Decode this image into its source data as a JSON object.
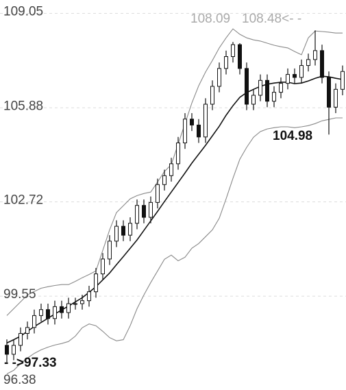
{
  "chart_data": {
    "type": "candlestick",
    "ylim": [
      96.4,
      109.5
    ],
    "yticks": [
      109.05,
      105.88,
      102.72,
      99.55,
      96.38
    ],
    "grid": true,
    "candle_color": "#111111",
    "open": [
      97.9,
      97.6,
      97.9,
      98.3,
      98.5,
      98.9,
      99.1,
      98.8,
      99.2,
      99.0,
      99.3,
      99.3,
      99.4,
      99.7,
      100.3,
      100.8,
      101.4,
      101.9,
      101.6,
      102.0,
      102.6,
      102.2,
      102.7,
      103.3,
      103.6,
      104.0,
      104.7,
      105.5,
      105.3,
      104.9,
      106.0,
      106.6,
      107.2,
      107.6,
      108.0,
      107.2,
      106.0,
      106.3,
      106.8,
      106.1,
      106.4,
      106.7,
      107.0,
      106.9,
      107.3,
      107.5,
      107.8,
      106.9,
      105.9,
      106.5
    ],
    "high": [
      98.1,
      98.1,
      98.5,
      98.7,
      99.1,
      99.3,
      99.3,
      99.4,
      99.4,
      99.5,
      99.5,
      99.6,
      99.9,
      100.5,
      101.0,
      101.6,
      102.1,
      102.1,
      102.2,
      102.8,
      102.8,
      102.9,
      103.5,
      103.8,
      104.2,
      104.9,
      105.7,
      105.7,
      105.5,
      106.2,
      106.8,
      107.4,
      107.8,
      108.09,
      108.05,
      107.4,
      106.5,
      107.0,
      107.0,
      106.6,
      106.9,
      107.2,
      107.2,
      107.5,
      107.7,
      108.48,
      108.0,
      107.1,
      106.7,
      107.3
    ],
    "low": [
      97.33,
      97.4,
      97.7,
      98.1,
      98.3,
      98.7,
      98.6,
      98.6,
      98.8,
      98.8,
      99.1,
      99.1,
      99.2,
      99.5,
      100.1,
      100.6,
      101.2,
      101.4,
      101.4,
      101.8,
      102.0,
      102.0,
      102.5,
      103.1,
      103.4,
      103.8,
      104.5,
      105.1,
      104.7,
      104.7,
      105.8,
      106.4,
      107.0,
      107.4,
      107.0,
      105.8,
      105.8,
      106.1,
      105.9,
      105.9,
      106.2,
      106.5,
      106.7,
      106.7,
      107.1,
      107.3,
      106.7,
      104.98,
      105.7,
      106.3
    ],
    "close": [
      97.6,
      97.9,
      98.3,
      98.5,
      98.9,
      99.1,
      98.8,
      99.2,
      99.0,
      99.3,
      99.3,
      99.4,
      99.7,
      100.3,
      100.8,
      101.4,
      101.9,
      101.6,
      102.0,
      102.6,
      102.2,
      102.7,
      103.3,
      103.6,
      104.0,
      104.7,
      105.5,
      105.3,
      104.9,
      106.0,
      106.6,
      107.2,
      107.6,
      108.0,
      107.2,
      106.0,
      106.3,
      106.8,
      106.1,
      106.4,
      106.7,
      107.0,
      106.9,
      107.3,
      107.5,
      107.8,
      106.9,
      105.9,
      106.5,
      107.1
    ],
    "bands": {
      "upper": [
        98.9,
        99.13,
        99.36,
        99.59,
        99.71,
        99.82,
        99.87,
        99.91,
        99.94,
        99.94,
        100.05,
        100.17,
        100.28,
        100.4,
        101.09,
        101.78,
        102.36,
        102.59,
        102.82,
        102.93,
        103.0,
        103.05,
        103.39,
        103.74,
        103.97,
        104.66,
        105.35,
        106.04,
        106.62,
        107.08,
        107.47,
        107.89,
        108.23,
        108.53,
        108.35,
        108.23,
        108.16,
        108.12,
        108.05,
        107.98,
        107.93,
        107.89,
        107.77,
        107.66,
        108.23,
        108.46,
        108.44,
        108.42,
        108.39,
        108.39
      ],
      "middle": [
        97.98,
        98.09,
        98.21,
        98.37,
        98.53,
        98.67,
        98.81,
        98.95,
        99.09,
        99.22,
        99.36,
        99.5,
        99.68,
        99.87,
        100.1,
        100.33,
        100.61,
        100.88,
        101.16,
        101.44,
        101.76,
        102.08,
        102.4,
        102.73,
        103.05,
        103.37,
        103.69,
        104.02,
        104.32,
        104.62,
        104.94,
        105.26,
        105.63,
        105.95,
        106.23,
        106.39,
        106.5,
        106.6,
        106.67,
        106.71,
        106.74,
        106.74,
        106.69,
        106.71,
        106.78,
        106.87,
        106.94,
        106.92,
        106.87,
        106.83
      ],
      "lower": [
        96.94,
        97.06,
        97.29,
        97.47,
        97.63,
        97.75,
        97.84,
        97.91,
        97.96,
        98.03,
        98.21,
        98.49,
        98.62,
        98.56,
        98.37,
        98.16,
        98.05,
        98.09,
        98.56,
        99.13,
        99.59,
        100.01,
        100.4,
        100.79,
        100.93,
        100.74,
        100.86,
        101.16,
        101.32,
        101.55,
        101.78,
        102.17,
        102.82,
        103.51,
        104.15,
        104.55,
        104.89,
        105.08,
        105.17,
        105.21,
        105.24,
        105.24,
        105.21,
        105.24,
        105.28,
        105.35,
        105.44,
        105.49,
        105.54,
        105.54
      ],
      "outer_color": "#888888",
      "middle_color": "#111111"
    },
    "annotations": [
      "108.09",
      "108.48<- -",
      "104.98",
      "- ->97.33"
    ]
  }
}
